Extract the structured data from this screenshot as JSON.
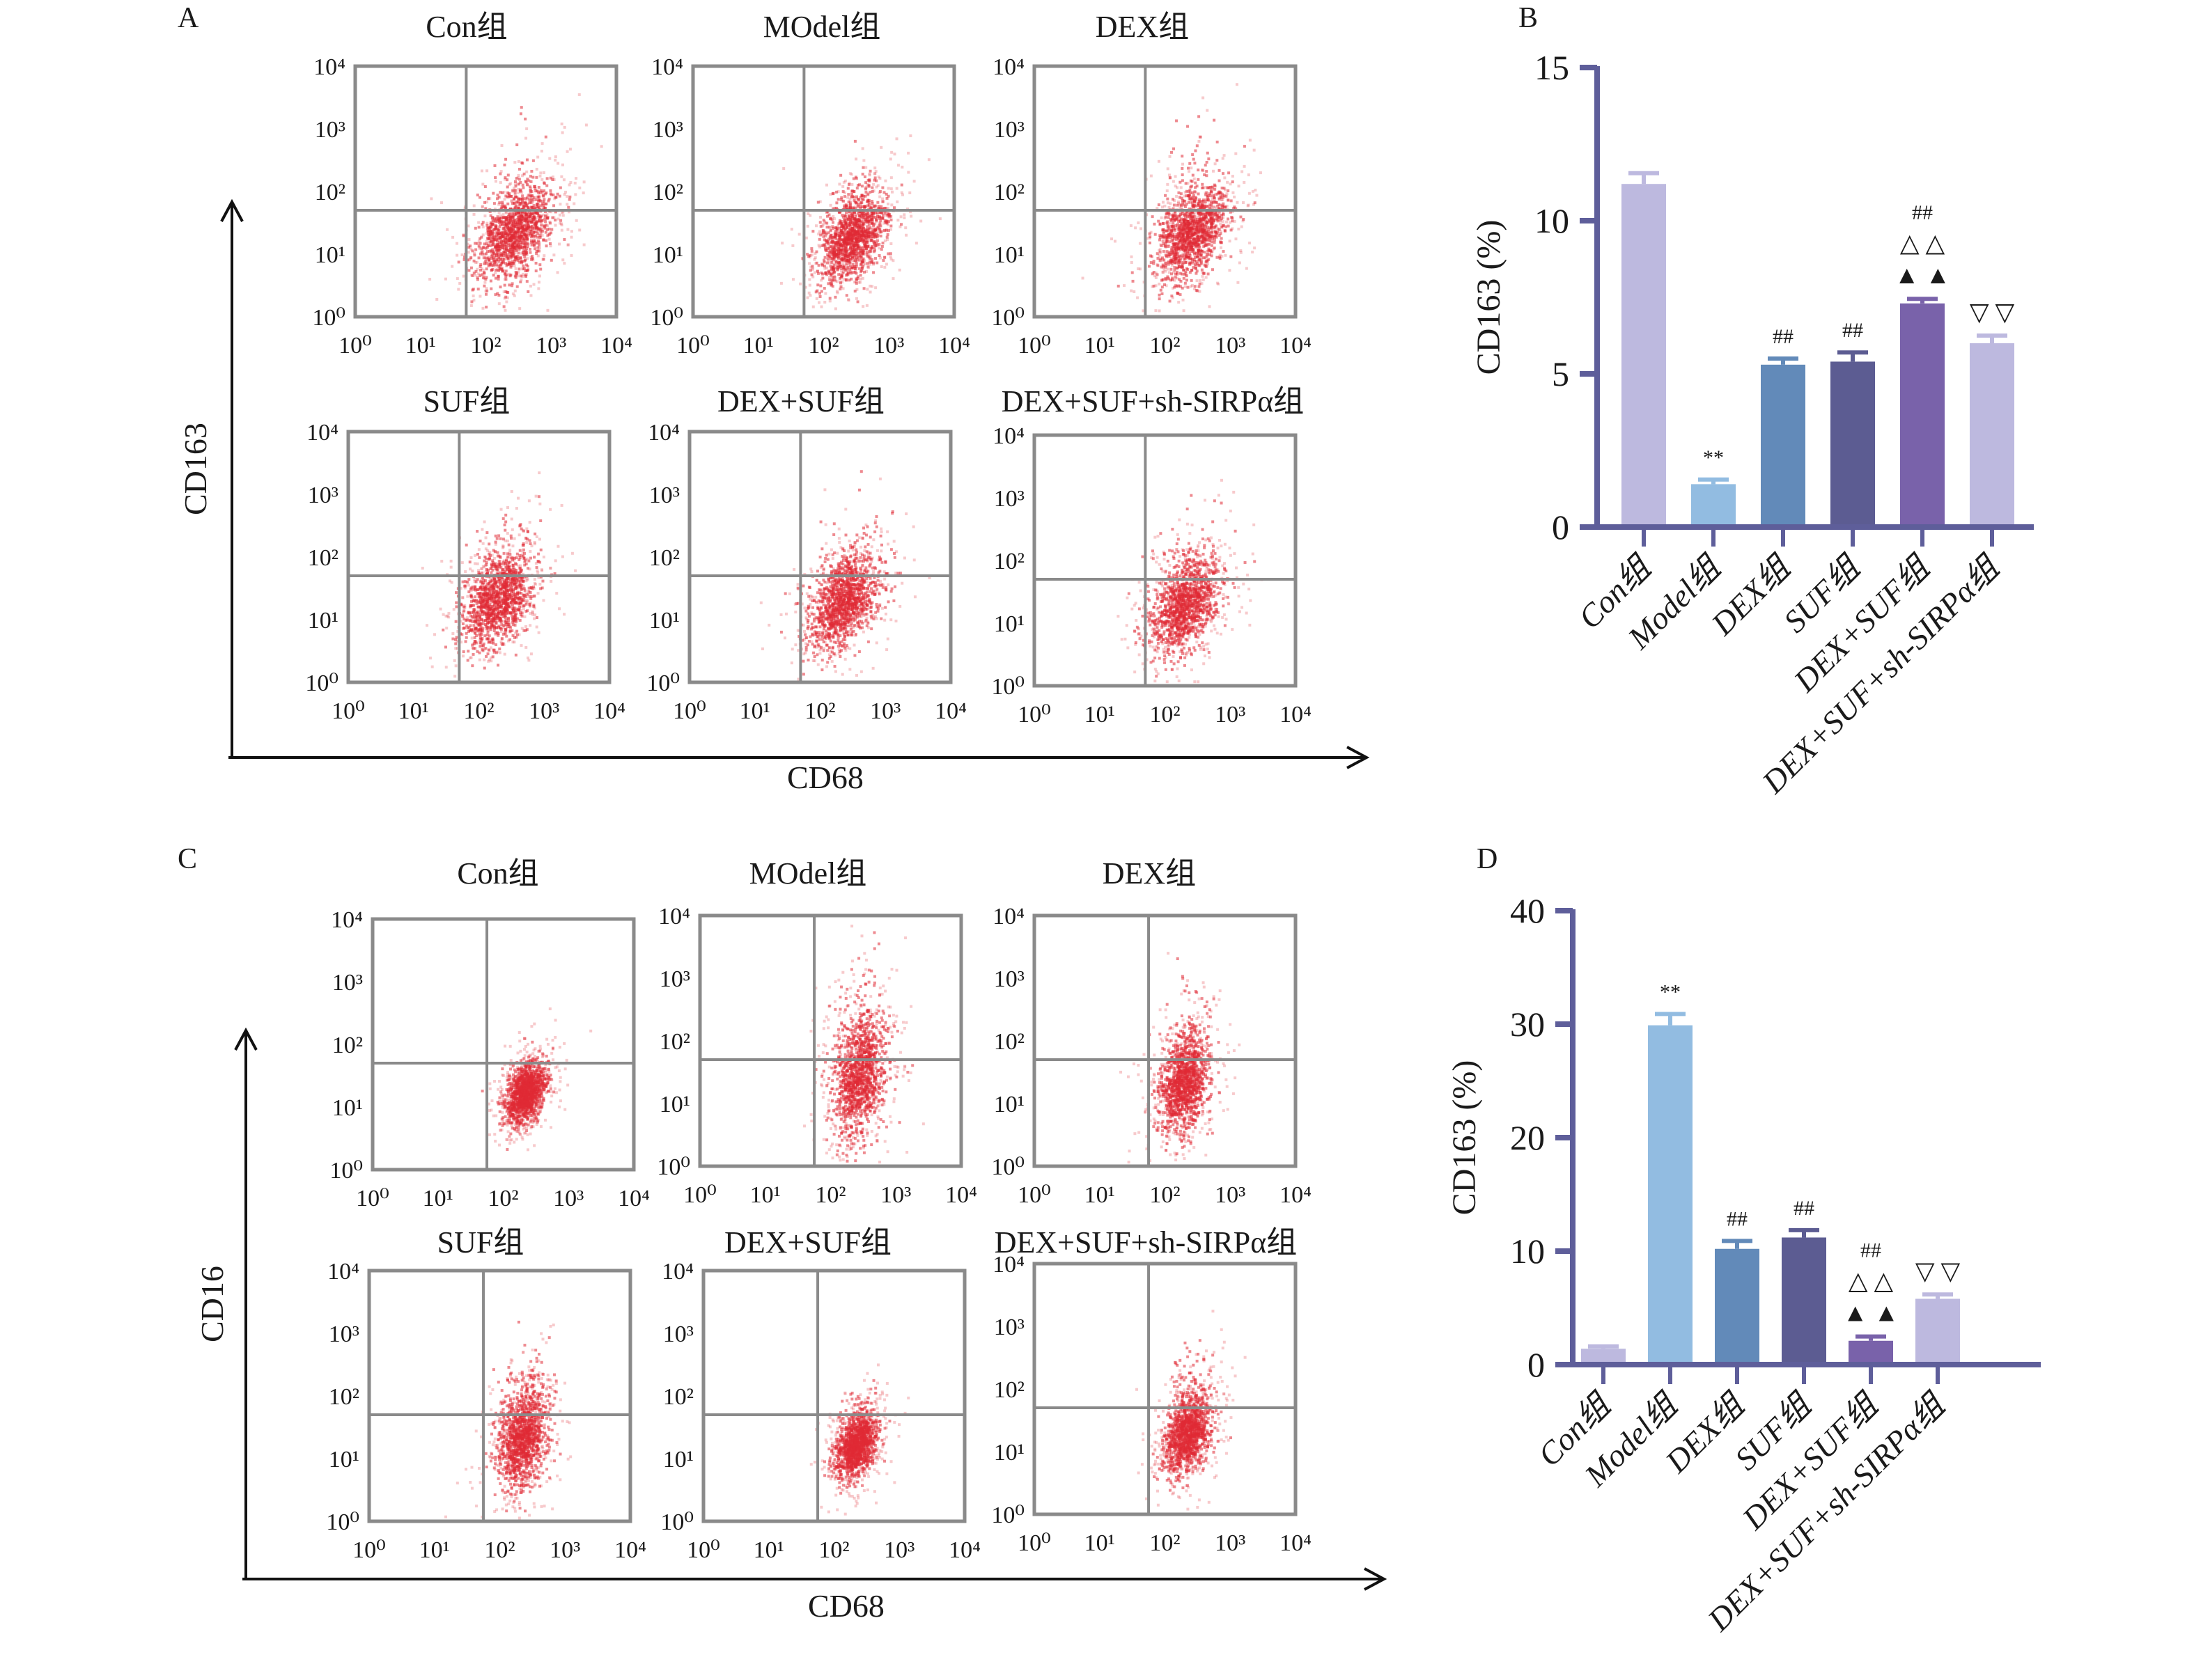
{
  "figure": {
    "panel_letters": {
      "A": "A",
      "B": "B",
      "C": "C",
      "D": "D"
    },
    "panel_a": {
      "y_axis_title": "CD163",
      "x_axis_title": "CD68",
      "plots": [
        {
          "title": "Con组"
        },
        {
          "title": "MOdel组"
        },
        {
          "title": "DEX组"
        },
        {
          "title": "SUF组"
        },
        {
          "title": "DEX+SUF组"
        },
        {
          "title": "DEX+SUF+sh-SIRPα组"
        }
      ]
    },
    "panel_c": {
      "y_axis_title": "CD16",
      "x_axis_title": "CD68",
      "plots": [
        {
          "title": "Con组"
        },
        {
          "title": "MOdel组"
        },
        {
          "title": "DEX组"
        },
        {
          "title": "SUF组"
        },
        {
          "title": "DEX+SUF组"
        },
        {
          "title": "DEX+SUF+sh-SIRPα组"
        }
      ]
    },
    "flow_tick_labels": [
      "10⁰",
      "10¹",
      "10²",
      "10³",
      "10⁴"
    ],
    "dot_color": "#e02a35",
    "gate_color": "#8a8a8a"
  },
  "chart_data": [
    {
      "id": "B",
      "type": "bar",
      "title": "",
      "xlabel": "",
      "ylabel": "CD163 (%)",
      "ylim": [
        0,
        15
      ],
      "yticks": [
        0,
        5,
        10,
        15
      ],
      "grid": false,
      "categories": [
        "Con组",
        "Model组",
        "DEX组",
        "SUF组",
        "DEX+SUF组",
        "DEX+SUF+sh-SIRPα组"
      ],
      "values": [
        11.2,
        1.4,
        5.3,
        5.4,
        7.3,
        6.0
      ],
      "error": [
        0.35,
        0.15,
        0.2,
        0.3,
        0.15,
        0.25
      ],
      "colors": [
        "#bdb9df",
        "#92bce1",
        "#628ab9",
        "#5c5c92",
        "#7962aa",
        "#bdb9df"
      ],
      "annotations": [
        [],
        [
          "**"
        ],
        [
          "##"
        ],
        [
          "##"
        ],
        [
          "##",
          "△ △",
          "▲ ▲"
        ],
        [
          "▽ ▽"
        ]
      ]
    },
    {
      "id": "D",
      "type": "bar",
      "title": "",
      "xlabel": "",
      "ylabel": "CD163 (%)",
      "ylim": [
        0,
        40
      ],
      "yticks": [
        0,
        10,
        20,
        30,
        40
      ],
      "grid": false,
      "categories": [
        "Con组",
        "Model组",
        "DEX组",
        "SUF组",
        "DEX+SUF组",
        "DEX+SUF+sh-SIRPα组"
      ],
      "values": [
        1.4,
        29.9,
        10.2,
        11.2,
        2.1,
        5.8
      ],
      "error": [
        0.2,
        1.0,
        0.7,
        0.65,
        0.38,
        0.38
      ],
      "colors": [
        "#bdb9df",
        "#92bce1",
        "#628ab9",
        "#5c5c92",
        "#7962aa",
        "#bdb9df"
      ],
      "annotations": [
        [],
        [
          "**"
        ],
        [
          "##"
        ],
        [
          "##"
        ],
        [
          "##",
          "△ △",
          "▲ ▲"
        ],
        [
          "▽ ▽"
        ]
      ]
    }
  ]
}
